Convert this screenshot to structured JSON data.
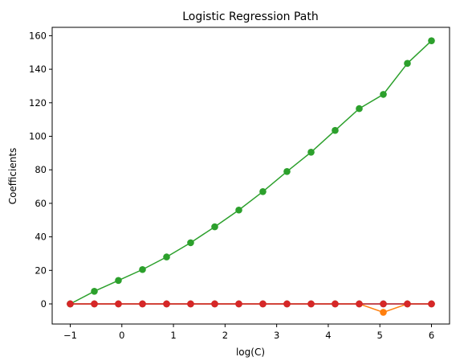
{
  "chart_data": {
    "type": "line",
    "title": "Logistic Regression Path",
    "xlabel": "log(C)",
    "ylabel": "Coefficients",
    "xlim": [
      -1.35,
      6.35
    ],
    "ylim": [
      -12,
      165
    ],
    "xticks": [
      -1,
      0,
      1,
      2,
      3,
      4,
      5,
      6
    ],
    "yticks": [
      0,
      20,
      40,
      60,
      80,
      100,
      120,
      140,
      160
    ],
    "grid": false,
    "x": [
      -1.0,
      -0.533,
      -0.067,
      0.4,
      0.867,
      1.333,
      1.8,
      2.267,
      2.733,
      3.2,
      3.667,
      4.133,
      4.6,
      5.067,
      5.533,
      6.0
    ],
    "series": [
      {
        "color": "#1f77b4",
        "values": [
          0,
          0,
          0,
          0,
          0,
          0,
          0,
          0,
          0,
          0,
          0,
          0,
          0,
          0,
          0,
          0
        ]
      },
      {
        "color": "#ff7f0e",
        "values": [
          0,
          0,
          0,
          0,
          0,
          0,
          0,
          0,
          0,
          0,
          0,
          0,
          0,
          -5,
          0,
          0
        ]
      },
      {
        "color": "#2ca02c",
        "values": [
          0,
          7.5,
          14,
          20.5,
          28,
          36.5,
          46,
          56,
          67,
          79,
          90.5,
          103.5,
          116.5,
          125,
          143.5,
          157
        ]
      },
      {
        "color": "#d62728",
        "values": [
          0,
          0,
          0,
          0,
          0,
          0,
          0,
          0,
          0,
          0,
          0,
          0,
          0,
          0,
          0,
          0
        ]
      }
    ]
  }
}
